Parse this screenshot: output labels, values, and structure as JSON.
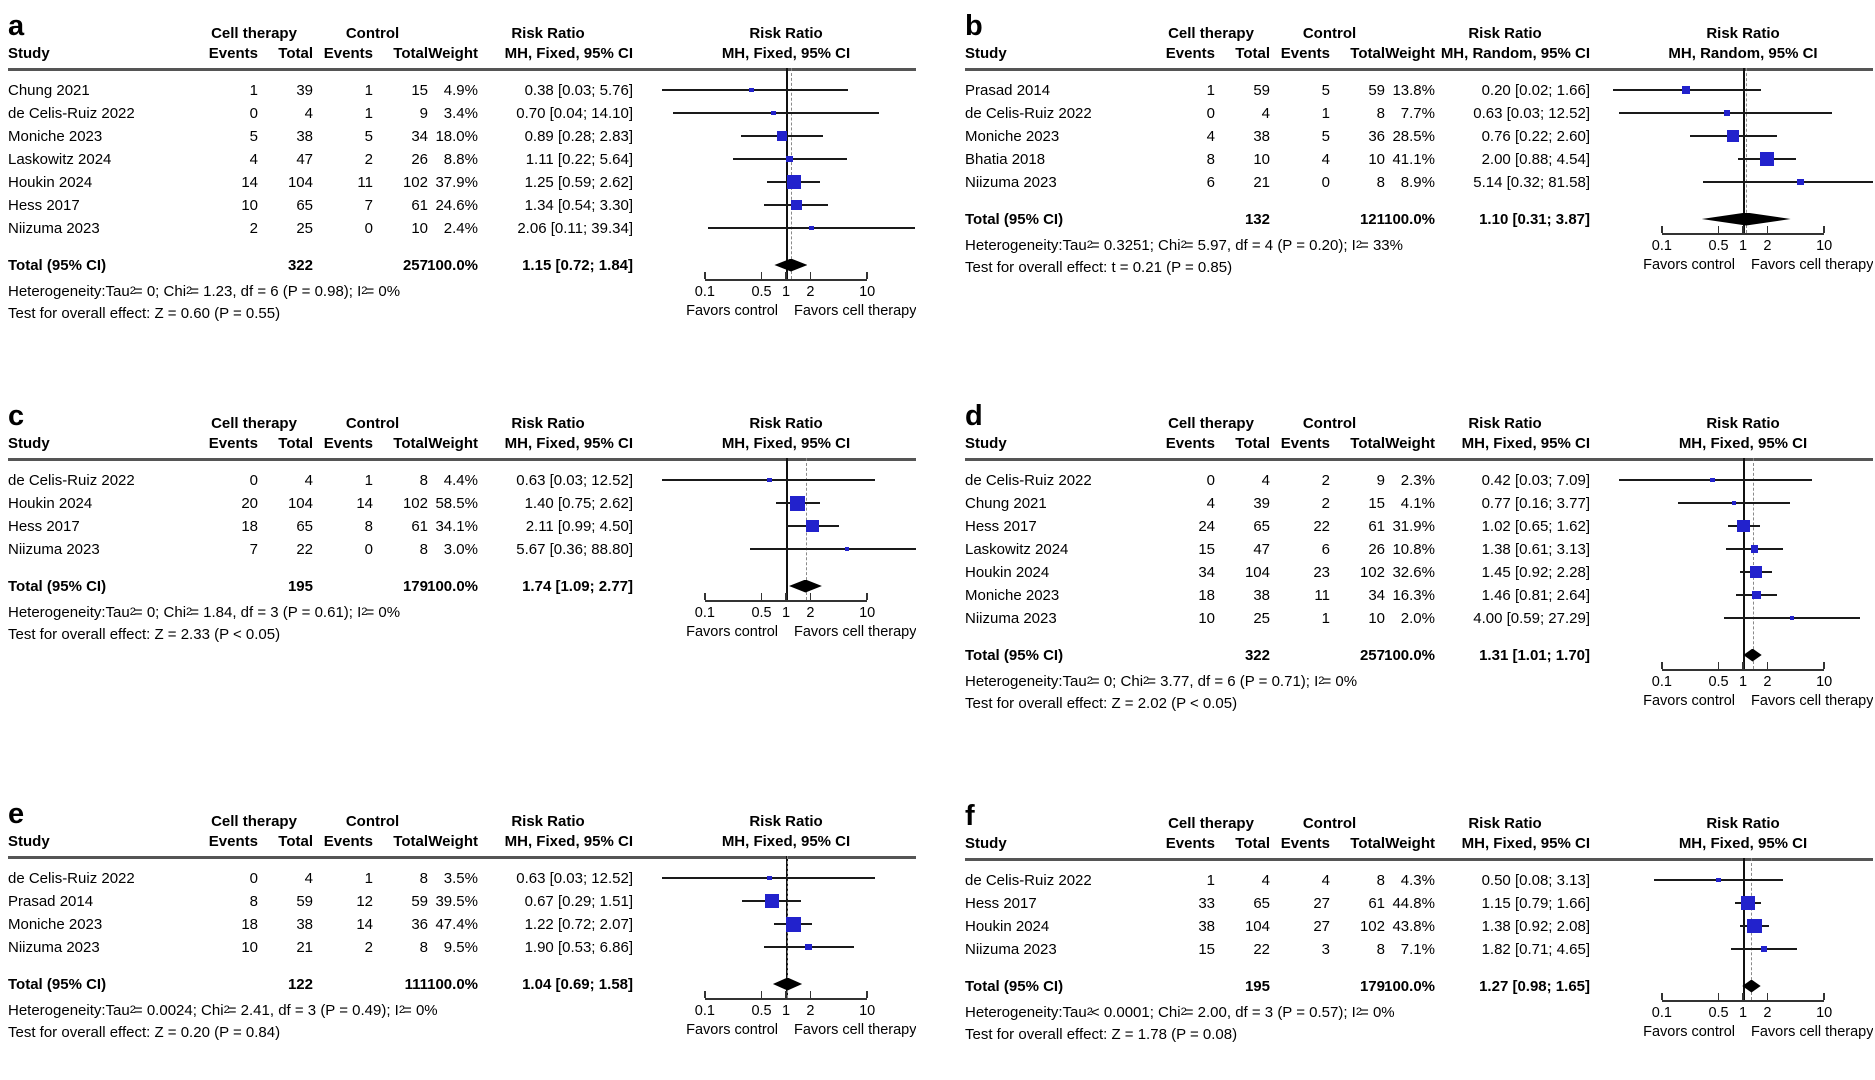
{
  "figure": {
    "marker_color": "#2222cc",
    "diamond_color": "#000000",
    "columns": {
      "study": "Study",
      "group1": "Cell therapy",
      "group2": "Control",
      "events": "Events",
      "total": "Total",
      "weight": "Weight",
      "rr_header": "Risk Ratio"
    },
    "axis": {
      "scale": "log",
      "ticks": [
        0.1,
        0.5,
        1,
        2,
        10
      ],
      "tick_labels": [
        "0.1",
        "0.5",
        "1",
        "2",
        "10"
      ],
      "favors_left": "Favors control",
      "favors_right": "Favors cell therapy"
    }
  },
  "chart_data": [
    {
      "type": "forest",
      "panel": "a",
      "method": "MH, Fixed, 95% CI",
      "studies": [
        {
          "name": "Chung 2021",
          "ct_events": 1,
          "ct_total": 39,
          "c_events": 1,
          "c_total": 15,
          "weight": "4.9%",
          "rr": 0.38,
          "lo": 0.03,
          "hi": 5.76,
          "ci": "0.38 [0.03; 5.76]"
        },
        {
          "name": "de Celis-Ruiz 2022",
          "ct_events": 0,
          "ct_total": 4,
          "c_events": 1,
          "c_total": 9,
          "weight": "3.4%",
          "rr": 0.7,
          "lo": 0.04,
          "hi": 14.1,
          "ci": "0.70 [0.04; 14.10]"
        },
        {
          "name": "Moniche 2023",
          "ct_events": 5,
          "ct_total": 38,
          "c_events": 5,
          "c_total": 34,
          "weight": "18.0%",
          "rr": 0.89,
          "lo": 0.28,
          "hi": 2.83,
          "ci": "0.89 [0.28; 2.83]"
        },
        {
          "name": "Laskowitz 2024",
          "ct_events": 4,
          "ct_total": 47,
          "c_events": 2,
          "c_total": 26,
          "weight": "8.8%",
          "rr": 1.11,
          "lo": 0.22,
          "hi": 5.64,
          "ci": "1.11 [0.22; 5.64]"
        },
        {
          "name": "Houkin 2024",
          "ct_events": 14,
          "ct_total": 104,
          "c_events": 11,
          "c_total": 102,
          "weight": "37.9%",
          "rr": 1.25,
          "lo": 0.59,
          "hi": 2.62,
          "ci": "1.25 [0.59; 2.62]"
        },
        {
          "name": "Hess 2017",
          "ct_events": 10,
          "ct_total": 65,
          "c_events": 7,
          "c_total": 61,
          "weight": "24.6%",
          "rr": 1.34,
          "lo": 0.54,
          "hi": 3.3,
          "ci": "1.34 [0.54; 3.30]"
        },
        {
          "name": "Niizuma 2023",
          "ct_events": 2,
          "ct_total": 25,
          "c_events": 0,
          "c_total": 10,
          "weight": "2.4%",
          "rr": 2.06,
          "lo": 0.11,
          "hi": 39.34,
          "ci": "2.06 [0.11; 39.34]"
        }
      ],
      "total": {
        "label": "Total (95% CI)",
        "ct_total": 322,
        "c_total": 257,
        "weight": "100.0%",
        "rr": 1.15,
        "lo": 0.72,
        "hi": 1.84,
        "ci": "1.15 [0.72; 1.84]"
      },
      "heterogeneity": "Heterogeneity:Tau² = 0; Chi² = 1.23, df = 6 (P = 0.98); I² = 0%",
      "test": "Test for overall effect: Z = 0.60 (P = 0.55)"
    },
    {
      "type": "forest",
      "panel": "b",
      "method": "MH, Random, 95% CI",
      "studies": [
        {
          "name": "Prasad 2014",
          "ct_events": 1,
          "ct_total": 59,
          "c_events": 5,
          "c_total": 59,
          "weight": "13.8%",
          "rr": 0.2,
          "lo": 0.02,
          "hi": 1.66,
          "ci": "0.20 [0.02; 1.66]"
        },
        {
          "name": "de Celis-Ruiz 2022",
          "ct_events": 0,
          "ct_total": 4,
          "c_events": 1,
          "c_total": 8,
          "weight": "7.7%",
          "rr": 0.63,
          "lo": 0.03,
          "hi": 12.52,
          "ci": "0.63 [0.03; 12.52]"
        },
        {
          "name": "Moniche 2023",
          "ct_events": 4,
          "ct_total": 38,
          "c_events": 5,
          "c_total": 36,
          "weight": "28.5%",
          "rr": 0.76,
          "lo": 0.22,
          "hi": 2.6,
          "ci": "0.76 [0.22; 2.60]"
        },
        {
          "name": "Bhatia 2018",
          "ct_events": 8,
          "ct_total": 10,
          "c_events": 4,
          "c_total": 10,
          "weight": "41.1%",
          "rr": 2.0,
          "lo": 0.88,
          "hi": 4.54,
          "ci": "2.00 [0.88; 4.54]"
        },
        {
          "name": "Niizuma 2023",
          "ct_events": 6,
          "ct_total": 21,
          "c_events": 0,
          "c_total": 8,
          "weight": "8.9%",
          "rr": 5.14,
          "lo": 0.32,
          "hi": 81.58,
          "ci": "5.14 [0.32; 81.58]"
        }
      ],
      "total": {
        "label": "Total (95% CI)",
        "ct_total": 132,
        "c_total": 121,
        "weight": "100.0%",
        "rr": 1.1,
        "lo": 0.31,
        "hi": 3.87,
        "ci": "1.10 [0.31; 3.87]"
      },
      "heterogeneity": "Heterogeneity:Tau² = 0.3251; Chi² = 5.97, df = 4 (P = 0.20); I² = 33%",
      "test": "Test for overall effect: t = 0.21 (P = 0.85)"
    },
    {
      "type": "forest",
      "panel": "c",
      "method": "MH, Fixed, 95% CI",
      "studies": [
        {
          "name": "de Celis-Ruiz 2022",
          "ct_events": 0,
          "ct_total": 4,
          "c_events": 1,
          "c_total": 8,
          "weight": "4.4%",
          "rr": 0.63,
          "lo": 0.03,
          "hi": 12.52,
          "ci": "0.63 [0.03; 12.52]"
        },
        {
          "name": "Houkin 2024",
          "ct_events": 20,
          "ct_total": 104,
          "c_events": 14,
          "c_total": 102,
          "weight": "58.5%",
          "rr": 1.4,
          "lo": 0.75,
          "hi": 2.62,
          "ci": "1.40 [0.75; 2.62]"
        },
        {
          "name": "Hess 2017",
          "ct_events": 18,
          "ct_total": 65,
          "c_events": 8,
          "c_total": 61,
          "weight": "34.1%",
          "rr": 2.11,
          "lo": 0.99,
          "hi": 4.5,
          "ci": "2.11 [0.99; 4.50]"
        },
        {
          "name": "Niizuma 2023",
          "ct_events": 7,
          "ct_total": 22,
          "c_events": 0,
          "c_total": 8,
          "weight": "3.0%",
          "rr": 5.67,
          "lo": 0.36,
          "hi": 88.8,
          "ci": "5.67 [0.36; 88.80]"
        }
      ],
      "total": {
        "label": "Total (95% CI)",
        "ct_total": 195,
        "c_total": 179,
        "weight": "100.0%",
        "rr": 1.74,
        "lo": 1.09,
        "hi": 2.77,
        "ci": "1.74 [1.09; 2.77]"
      },
      "heterogeneity": "Heterogeneity:Tau² = 0; Chi² = 1.84, df = 3 (P = 0.61); I² = 0%",
      "test": "Test for overall effect: Z = 2.33 (P < 0.05)"
    },
    {
      "type": "forest",
      "panel": "d",
      "method": "MH, Fixed, 95% CI",
      "studies": [
        {
          "name": "de Celis-Ruiz 2022",
          "ct_events": 0,
          "ct_total": 4,
          "c_events": 2,
          "c_total": 9,
          "weight": "2.3%",
          "rr": 0.42,
          "lo": 0.03,
          "hi": 7.09,
          "ci": "0.42 [0.03; 7.09]"
        },
        {
          "name": "Chung 2021",
          "ct_events": 4,
          "ct_total": 39,
          "c_events": 2,
          "c_total": 15,
          "weight": "4.1%",
          "rr": 0.77,
          "lo": 0.16,
          "hi": 3.77,
          "ci": "0.77 [0.16; 3.77]"
        },
        {
          "name": "Hess 2017",
          "ct_events": 24,
          "ct_total": 65,
          "c_events": 22,
          "c_total": 61,
          "weight": "31.9%",
          "rr": 1.02,
          "lo": 0.65,
          "hi": 1.62,
          "ci": "1.02 [0.65; 1.62]"
        },
        {
          "name": "Laskowitz 2024",
          "ct_events": 15,
          "ct_total": 47,
          "c_events": 6,
          "c_total": 26,
          "weight": "10.8%",
          "rr": 1.38,
          "lo": 0.61,
          "hi": 3.13,
          "ci": "1.38 [0.61; 3.13]"
        },
        {
          "name": "Houkin 2024",
          "ct_events": 34,
          "ct_total": 104,
          "c_events": 23,
          "c_total": 102,
          "weight": "32.6%",
          "rr": 1.45,
          "lo": 0.92,
          "hi": 2.28,
          "ci": "1.45 [0.92; 2.28]"
        },
        {
          "name": "Moniche 2023",
          "ct_events": 18,
          "ct_total": 38,
          "c_events": 11,
          "c_total": 34,
          "weight": "16.3%",
          "rr": 1.46,
          "lo": 0.81,
          "hi": 2.64,
          "ci": "1.46 [0.81; 2.64]"
        },
        {
          "name": "Niizuma 2023",
          "ct_events": 10,
          "ct_total": 25,
          "c_events": 1,
          "c_total": 10,
          "weight": "2.0%",
          "rr": 4.0,
          "lo": 0.59,
          "hi": 27.29,
          "ci": "4.00 [0.59; 27.29]"
        }
      ],
      "total": {
        "label": "Total (95% CI)",
        "ct_total": 322,
        "c_total": 257,
        "weight": "100.0%",
        "rr": 1.31,
        "lo": 1.01,
        "hi": 1.7,
        "ci": "1.31 [1.01; 1.70]"
      },
      "heterogeneity": "Heterogeneity:Tau² = 0; Chi² = 3.77, df = 6 (P = 0.71); I² = 0%",
      "test": "Test for overall effect: Z = 2.02 (P < 0.05)"
    },
    {
      "type": "forest",
      "panel": "e",
      "method": "MH, Fixed, 95% CI",
      "studies": [
        {
          "name": "de Celis-Ruiz 2022",
          "ct_events": 0,
          "ct_total": 4,
          "c_events": 1,
          "c_total": 8,
          "weight": "3.5%",
          "rr": 0.63,
          "lo": 0.03,
          "hi": 12.52,
          "ci": "0.63 [0.03; 12.52]"
        },
        {
          "name": "Prasad 2014",
          "ct_events": 8,
          "ct_total": 59,
          "c_events": 12,
          "c_total": 59,
          "weight": "39.5%",
          "rr": 0.67,
          "lo": 0.29,
          "hi": 1.51,
          "ci": "0.67 [0.29; 1.51]"
        },
        {
          "name": "Moniche 2023",
          "ct_events": 18,
          "ct_total": 38,
          "c_events": 14,
          "c_total": 36,
          "weight": "47.4%",
          "rr": 1.22,
          "lo": 0.72,
          "hi": 2.07,
          "ci": "1.22 [0.72; 2.07]"
        },
        {
          "name": "Niizuma 2023",
          "ct_events": 10,
          "ct_total": 21,
          "c_events": 2,
          "c_total": 8,
          "weight": "9.5%",
          "rr": 1.9,
          "lo": 0.53,
          "hi": 6.86,
          "ci": "1.90 [0.53; 6.86]"
        }
      ],
      "total": {
        "label": "Total (95% CI)",
        "ct_total": 122,
        "c_total": 111,
        "weight": "100.0%",
        "rr": 1.04,
        "lo": 0.69,
        "hi": 1.58,
        "ci": "1.04 [0.69; 1.58]"
      },
      "heterogeneity": "Heterogeneity:Tau² = 0.0024; Chi² = 2.41, df = 3 (P = 0.49); I² = 0%",
      "test": "Test for overall effect: Z = 0.20 (P = 0.84)"
    },
    {
      "type": "forest",
      "panel": "f",
      "method": "MH, Fixed, 95% CI",
      "studies": [
        {
          "name": "de Celis-Ruiz 2022",
          "ct_events": 1,
          "ct_total": 4,
          "c_events": 4,
          "c_total": 8,
          "weight": "4.3%",
          "rr": 0.5,
          "lo": 0.08,
          "hi": 3.13,
          "ci": "0.50 [0.08; 3.13]"
        },
        {
          "name": "Hess 2017",
          "ct_events": 33,
          "ct_total": 65,
          "c_events": 27,
          "c_total": 61,
          "weight": "44.8%",
          "rr": 1.15,
          "lo": 0.79,
          "hi": 1.66,
          "ci": "1.15 [0.79; 1.66]"
        },
        {
          "name": "Houkin 2024",
          "ct_events": 38,
          "ct_total": 104,
          "c_events": 27,
          "c_total": 102,
          "weight": "43.8%",
          "rr": 1.38,
          "lo": 0.92,
          "hi": 2.08,
          "ci": "1.38 [0.92; 2.08]"
        },
        {
          "name": "Niizuma 2023",
          "ct_events": 15,
          "ct_total": 22,
          "c_events": 3,
          "c_total": 8,
          "weight": "7.1%",
          "rr": 1.82,
          "lo": 0.71,
          "hi": 4.65,
          "ci": "1.82 [0.71; 4.65]"
        }
      ],
      "total": {
        "label": "Total (95% CI)",
        "ct_total": 195,
        "c_total": 179,
        "weight": "100.0%",
        "rr": 1.27,
        "lo": 0.98,
        "hi": 1.65,
        "ci": "1.27 [0.98; 1.65]"
      },
      "heterogeneity": "Heterogeneity:Tau² < 0.0001; Chi² = 2.00, df = 3 (P = 0.57); I² = 0%",
      "test": "Test for overall effect: Z = 1.78 (P = 0.08)"
    }
  ]
}
